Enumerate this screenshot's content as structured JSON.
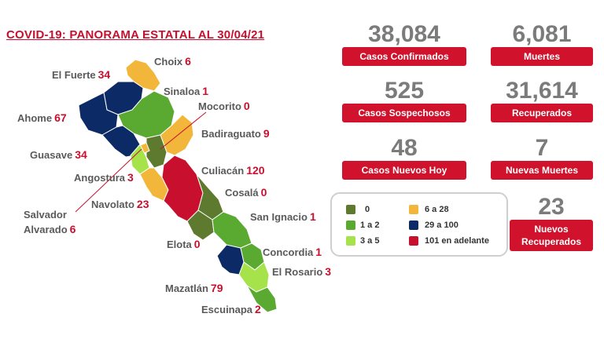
{
  "title": "COVID-19: PANORAMA ESTATAL AL 30/04/21",
  "stats": {
    "confirmados": {
      "value": "38,084",
      "label": "Casos Confirmados"
    },
    "muertes": {
      "value": "6,081",
      "label": "Muertes"
    },
    "sospechosos": {
      "value": "525",
      "label": "Casos Sospechosos"
    },
    "recuperados": {
      "value": "31,614",
      "label": "Recuperados"
    },
    "nuevos_hoy": {
      "value": "48",
      "label": "Casos Nuevos Hoy"
    },
    "nuevas_muertes": {
      "value": "7",
      "label": "Nuevas Muertes"
    },
    "nuevos_recuperados": {
      "value": "23",
      "label_1": "Nuevos",
      "label_2": "Recuperados"
    }
  },
  "legend": [
    {
      "label": "0",
      "color": "#5e7a2e"
    },
    {
      "label": "1 a 2",
      "color": "#5aaa32"
    },
    {
      "label": "3 a 5",
      "color": "#a6e34a"
    },
    {
      "label": "6 a 28",
      "color": "#f2b73a"
    },
    {
      "label": "29 a 100",
      "color": "#0b2a66"
    },
    {
      "label": "101 en adelante",
      "color": "#c8102e"
    }
  ],
  "municipios": {
    "choix": {
      "name": "Choix",
      "value": "6"
    },
    "el_fuerte": {
      "name": "El Fuerte",
      "value": "34"
    },
    "sinaloa": {
      "name": "Sinaloa",
      "value": "1"
    },
    "mocorito": {
      "name": "Mocorito",
      "value": "0"
    },
    "ahome": {
      "name": "Ahome",
      "value": "67"
    },
    "badiraguato": {
      "name": "Badiraguato",
      "value": "9"
    },
    "guasave": {
      "name": "Guasave",
      "value": "34"
    },
    "angostura": {
      "name": "Angostura",
      "value": "3"
    },
    "culiacan": {
      "name": "Culiacán",
      "value": "120"
    },
    "cosala": {
      "name": "Cosalá",
      "value": "0"
    },
    "salvador_alvarado": {
      "name_1": "Salvador",
      "name_2": "Alvarado",
      "value": "6"
    },
    "navolato": {
      "name": "Navolato",
      "value": "23"
    },
    "san_ignacio": {
      "name": "San Ignacio",
      "value": "1"
    },
    "elota": {
      "name": "Elota",
      "value": "0"
    },
    "concordia": {
      "name": "Concordia",
      "value": "1"
    },
    "el_rosario": {
      "name": "El Rosario",
      "value": "3"
    },
    "mazatlan": {
      "name": "Mazatlán",
      "value": "79"
    },
    "escuinapa": {
      "name": "Escuinapa",
      "value": "2"
    }
  }
}
